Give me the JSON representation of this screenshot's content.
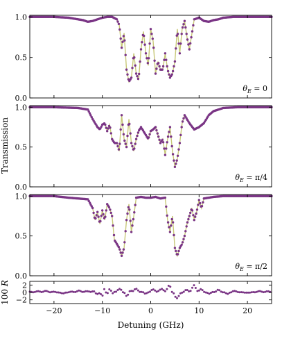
{
  "chart_data": {
    "type": "line",
    "xlabel": "Detuning (GHz)",
    "shared_ylabel": "Transmission",
    "xlim": [
      -25,
      25
    ],
    "x_ticks": [
      -20,
      -10,
      0,
      10,
      20
    ],
    "colors": {
      "theory_line": "#c8c878",
      "data_points": "#7a3585"
    },
    "panels": [
      {
        "annotation": "θE = 0",
        "annotation_tex": {
          "base": "θ",
          "sub": "E",
          "rest": " = 0"
        },
        "ylim": [
          0,
          1.02
        ],
        "y_ticks": [
          "0.0",
          "0.5",
          "1.0"
        ],
        "y_tick_values": [
          0,
          0.5,
          1.0
        ],
        "x": [
          -25,
          -20,
          -17,
          -15,
          -14,
          -13,
          -12,
          -11,
          -10,
          -9,
          -8,
          -7,
          -6.5,
          -6,
          -5.5,
          -5,
          -4.5,
          -4,
          -3.5,
          -3,
          -2.5,
          -2,
          -1.5,
          -1,
          -0.5,
          0,
          0.5,
          1,
          1.5,
          2,
          2.5,
          3,
          3.5,
          4,
          4.5,
          5,
          5.5,
          6,
          6.5,
          7,
          7.5,
          8,
          9,
          10,
          11,
          12,
          13,
          14,
          15,
          17,
          20,
          25
        ],
        "y": [
          1.0,
          1.0,
          0.99,
          0.97,
          0.96,
          0.94,
          0.95,
          0.97,
          0.99,
          1.0,
          1.0,
          0.97,
          0.9,
          0.62,
          0.8,
          0.35,
          0.2,
          0.25,
          0.55,
          0.3,
          0.22,
          0.6,
          0.82,
          0.55,
          0.4,
          0.85,
          0.7,
          0.3,
          0.45,
          0.35,
          0.35,
          0.55,
          0.35,
          0.25,
          0.3,
          0.45,
          0.85,
          0.55,
          0.85,
          0.95,
          0.75,
          0.6,
          0.97,
          0.99,
          0.95,
          0.94,
          0.96,
          0.97,
          0.99,
          1.0,
          1.0,
          1.0
        ]
      },
      {
        "annotation": "θE = π/4",
        "annotation_tex": {
          "base": "θ",
          "sub": "E",
          "rest": " = π/4"
        },
        "ylim": [
          0,
          1.02
        ],
        "y_ticks": [
          "0.0",
          "0.5",
          "1.0"
        ],
        "y_tick_values": [
          0,
          0.5,
          1.0
        ],
        "x": [
          -25,
          -20,
          -15,
          -13,
          -12,
          -11,
          -10.5,
          -10,
          -9.5,
          -9,
          -8.5,
          -8,
          -7.5,
          -7,
          -6.5,
          -6,
          -5.5,
          -5,
          -4.5,
          -4,
          -3.5,
          -3,
          -2.5,
          -2,
          -1.5,
          -1,
          -0.5,
          0,
          0.5,
          1,
          1.5,
          2,
          2.5,
          3,
          3.5,
          4,
          4.5,
          5,
          5.5,
          6,
          6.5,
          7,
          8,
          9,
          10,
          11,
          12,
          13,
          15,
          18,
          20,
          25
        ],
        "y": [
          1.0,
          1.0,
          0.99,
          0.97,
          0.85,
          0.75,
          0.72,
          0.78,
          0.8,
          0.7,
          0.78,
          0.6,
          0.55,
          0.55,
          0.45,
          0.9,
          0.6,
          0.5,
          0.85,
          0.55,
          0.45,
          0.6,
          0.7,
          0.75,
          0.7,
          0.65,
          0.6,
          0.7,
          0.72,
          0.75,
          0.65,
          0.55,
          0.6,
          0.4,
          0.6,
          0.75,
          0.45,
          0.25,
          0.35,
          0.55,
          0.8,
          0.9,
          0.8,
          0.72,
          0.75,
          0.8,
          0.9,
          0.95,
          0.99,
          1.0,
          1.0,
          1.0
        ]
      },
      {
        "annotation": "θE = π/2",
        "annotation_tex": {
          "base": "θ",
          "sub": "E",
          "rest": " = π/2"
        },
        "ylim": [
          0,
          1.02
        ],
        "y_ticks": [
          "0.0",
          "0.5",
          "1.0"
        ],
        "y_tick_values": [
          0,
          0.5,
          1.0
        ],
        "x": [
          -25,
          -20,
          -17,
          -15,
          -13,
          -12,
          -11.5,
          -11,
          -10.5,
          -10,
          -9.5,
          -9,
          -8.5,
          -8,
          -7.5,
          -7,
          -6.5,
          -6,
          -5.5,
          -5,
          -4.5,
          -4,
          -3.5,
          -3,
          -2,
          -1,
          0,
          1,
          2,
          3,
          3.5,
          4,
          4.5,
          5,
          5.5,
          6,
          6.5,
          7,
          7.5,
          8,
          8.5,
          9,
          9.5,
          10,
          10.5,
          11,
          12,
          13,
          15,
          17,
          20,
          25
        ],
        "y": [
          1.0,
          1.0,
          0.98,
          0.97,
          0.96,
          0.85,
          0.7,
          0.8,
          0.65,
          0.82,
          0.7,
          0.9,
          0.85,
          0.75,
          0.45,
          0.4,
          0.35,
          0.25,
          0.35,
          0.7,
          0.9,
          0.55,
          0.75,
          0.98,
          0.99,
          0.98,
          0.98,
          0.99,
          0.97,
          0.98,
          0.7,
          0.55,
          0.75,
          0.35,
          0.25,
          0.35,
          0.4,
          0.5,
          0.65,
          0.75,
          0.85,
          0.7,
          0.8,
          0.95,
          0.85,
          0.97,
          0.98,
          0.99,
          1.0,
          1.0,
          1.0,
          1.0
        ]
      }
    ],
    "residual_panel": {
      "ylabel": "100 R",
      "ylabel_tex": {
        "num": "100",
        "var": "R"
      },
      "ylim": [
        -3,
        3
      ],
      "y_ticks": [
        "−2",
        "0",
        "2"
      ],
      "y_tick_values": [
        -2,
        0,
        2
      ],
      "x": [
        -25,
        -22,
        -20,
        -18,
        -16,
        -14,
        -13,
        -12,
        -11,
        -10,
        -9.5,
        -9,
        -8.5,
        -8,
        -7,
        -6,
        -5,
        -4,
        -3,
        -2,
        -1,
        0,
        1,
        2,
        3,
        4,
        5,
        6,
        7,
        8,
        9,
        10,
        11,
        12,
        13,
        14,
        15,
        16,
        17,
        18,
        20,
        22,
        25
      ],
      "y": [
        0.2,
        0.5,
        0.2,
        -0.3,
        0.4,
        0.6,
        0.3,
        0.8,
        -0.8,
        -1.2,
        1.5,
        -1.5,
        2.0,
        -0.5,
        1.2,
        0.8,
        -1.5,
        1.5,
        1.0,
        0.5,
        -0.5,
        0.7,
        1.0,
        0.8,
        1.6,
        2.0,
        -2.0,
        -1.0,
        0.5,
        1.2,
        2.0,
        1.5,
        0.3,
        -0.5,
        0.4,
        0.8,
        0.2,
        -0.5,
        0.5,
        0.3,
        -0.2,
        0.4,
        0.3
      ]
    }
  }
}
